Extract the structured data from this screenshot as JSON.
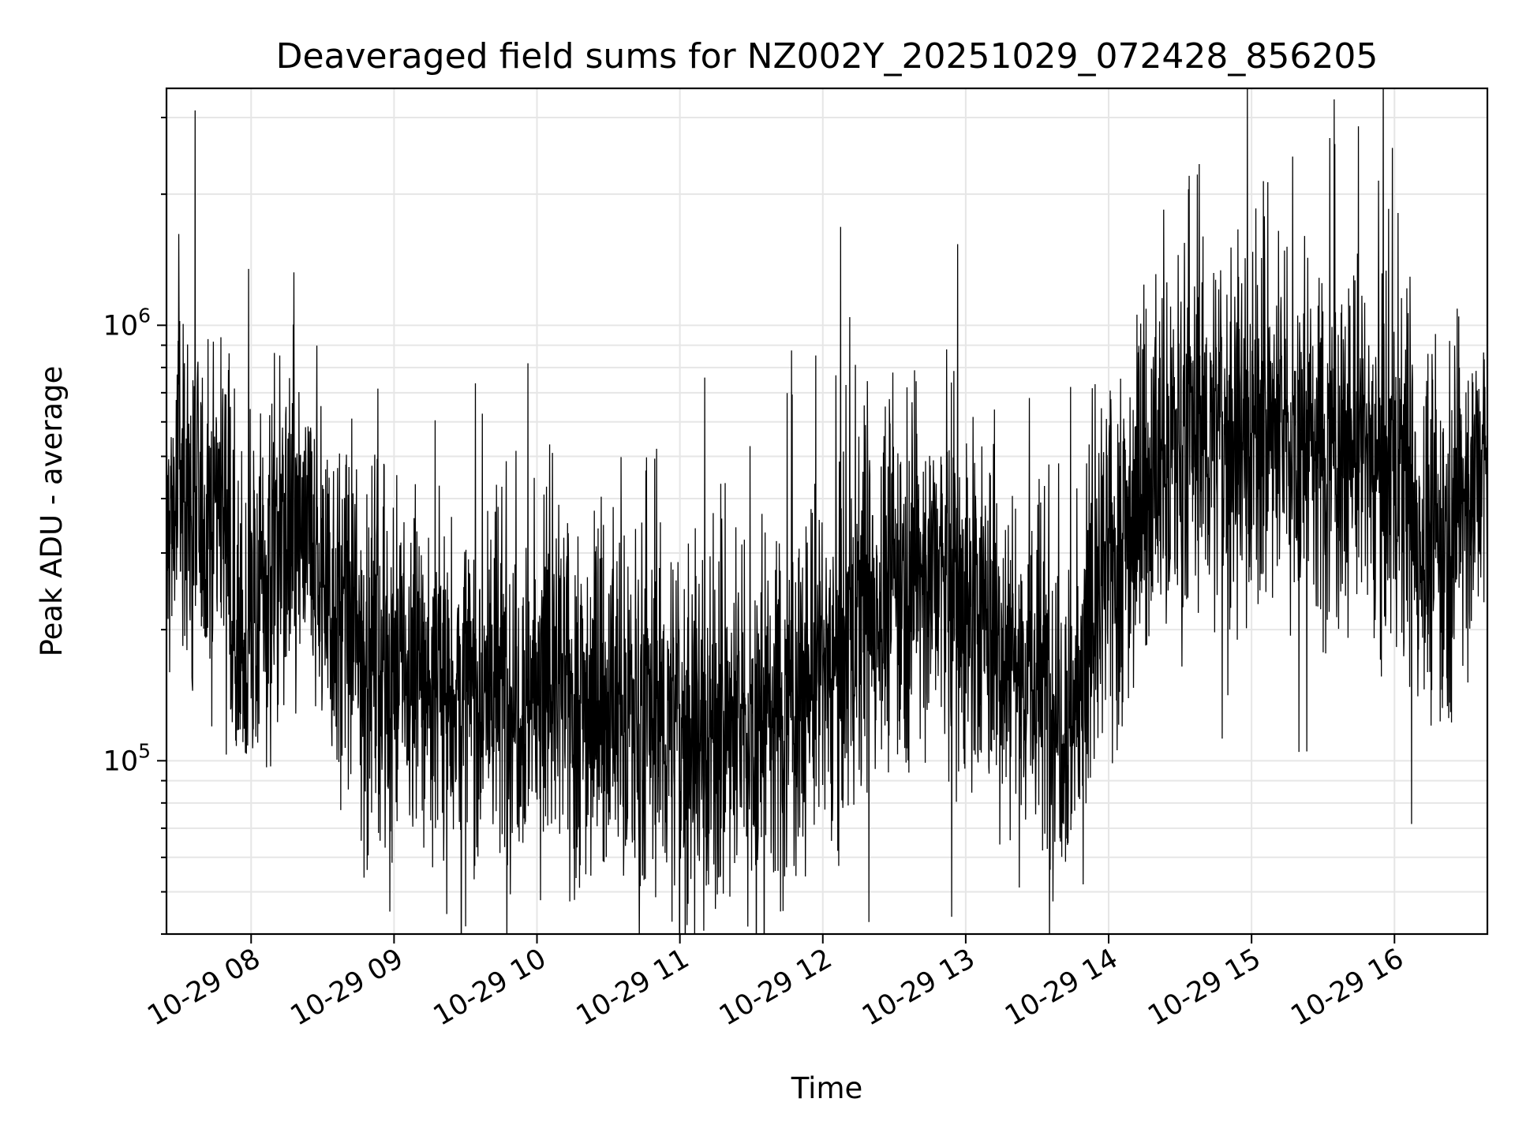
{
  "chart_data": {
    "type": "line",
    "title": "Deaveraged field sums for NZ002Y_20251029_072428_856205",
    "xlabel": "Time",
    "ylabel": "Peak ADU - average",
    "yscale": "log",
    "xlim": [
      "2025-10-29T07:24:28",
      "2025-10-29T16:39:00"
    ],
    "ylim": [
      40000,
      3500000
    ],
    "grid": true,
    "x_ticks": [
      {
        "value": "2025-10-29T08:00",
        "label": "10-29 08"
      },
      {
        "value": "2025-10-29T09:00",
        "label": "10-29 09"
      },
      {
        "value": "2025-10-29T10:00",
        "label": "10-29 10"
      },
      {
        "value": "2025-10-29T11:00",
        "label": "10-29 11"
      },
      {
        "value": "2025-10-29T12:00",
        "label": "10-29 12"
      },
      {
        "value": "2025-10-29T13:00",
        "label": "10-29 13"
      },
      {
        "value": "2025-10-29T14:00",
        "label": "10-29 14"
      },
      {
        "value": "2025-10-29T15:00",
        "label": "10-29 15"
      },
      {
        "value": "2025-10-29T16:00",
        "label": "10-29 16"
      }
    ],
    "y_ticks": [
      {
        "value": 100000,
        "base": "10",
        "exp": "5"
      },
      {
        "value": 1000000,
        "base": "10",
        "exp": "6"
      }
    ],
    "series_color": "#000000",
    "series": [
      {
        "x": [
          "2025-10-29T07:25",
          "2025-10-29T07:30",
          "2025-10-29T07:35",
          "2025-10-29T07:40",
          "2025-10-29T07:45",
          "2025-10-29T07:50",
          "2025-10-29T07:55",
          "2025-10-29T08:00",
          "2025-10-29T08:10",
          "2025-10-29T08:20",
          "2025-10-29T08:30",
          "2025-10-29T08:40",
          "2025-10-29T08:50",
          "2025-10-29T09:00",
          "2025-10-29T09:15",
          "2025-10-29T09:30",
          "2025-10-29T09:45",
          "2025-10-29T10:00",
          "2025-10-29T10:15",
          "2025-10-29T10:30",
          "2025-10-29T10:45",
          "2025-10-29T11:00",
          "2025-10-29T11:15",
          "2025-10-29T11:30",
          "2025-10-29T11:45",
          "2025-10-29T12:00",
          "2025-10-29T12:15",
          "2025-10-29T12:30",
          "2025-10-29T12:45",
          "2025-10-29T13:00",
          "2025-10-29T13:15",
          "2025-10-29T13:30",
          "2025-10-29T13:45",
          "2025-10-29T14:00",
          "2025-10-29T14:15",
          "2025-10-29T14:30",
          "2025-10-29T14:45",
          "2025-10-29T15:00",
          "2025-10-29T15:15",
          "2025-10-29T15:30",
          "2025-10-29T15:45",
          "2025-10-29T16:00",
          "2025-10-29T16:10",
          "2025-10-29T16:20",
          "2025-10-29T16:30",
          "2025-10-29T16:38"
        ],
        "y": [
          320000,
          450000,
          380000,
          350000,
          420000,
          400000,
          160000,
          200000,
          300000,
          330000,
          270000,
          200000,
          180000,
          160000,
          150000,
          140000,
          145000,
          150000,
          140000,
          135000,
          125000,
          120000,
          115000,
          120000,
          135000,
          160000,
          200000,
          260000,
          280000,
          230000,
          190000,
          150000,
          130000,
          280000,
          420000,
          550000,
          560000,
          580000,
          560000,
          520000,
          520000,
          460000,
          330000,
          310000,
          420000,
          460000
        ]
      }
    ]
  }
}
